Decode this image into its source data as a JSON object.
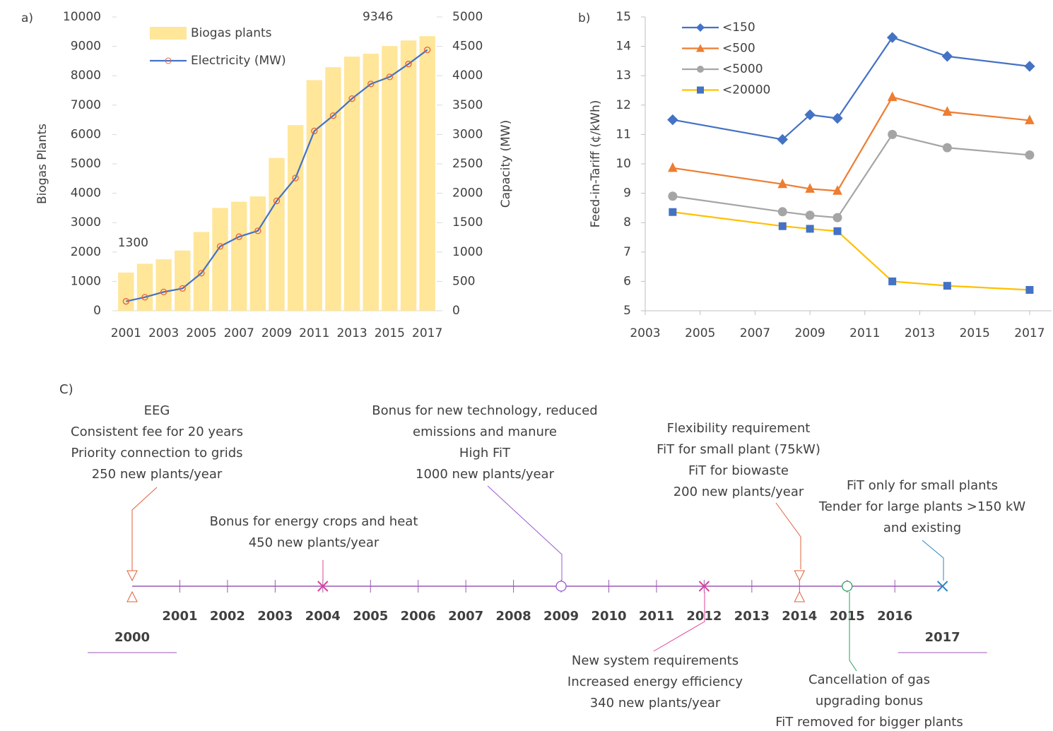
{
  "chart_data": [
    {
      "type": "combo",
      "label": "a)",
      "categories": [
        "2001",
        null,
        "2003",
        null,
        "2005",
        null,
        "2007",
        null,
        "2009",
        null,
        "2011",
        null,
        "2013",
        null,
        "2015",
        null,
        "2017"
      ],
      "series": [
        {
          "name": "Biogas plants",
          "type": "bar",
          "color": "#ffe699",
          "values": [
            1300,
            1600,
            1750,
            2050,
            2680,
            3500,
            3711,
            3891,
            5200,
            6320,
            7850,
            8290,
            8650,
            8750,
            9010,
            9200,
            9346
          ],
          "value_labels": [
            "1300",
            null,
            null,
            null,
            null,
            null,
            null,
            null,
            null,
            null,
            null,
            null,
            null,
            null,
            null,
            null,
            "9346"
          ]
        },
        {
          "name": "Electricity (MW)",
          "type": "line",
          "axis": "y2",
          "color": "#4472c4",
          "marker_color": "#e8603c",
          "values": [
            160,
            230,
            320,
            380,
            640,
            1095,
            1260,
            1360,
            1870,
            2260,
            3060,
            3320,
            3610,
            3860,
            3980,
            4200,
            4440
          ]
        }
      ],
      "ylabel": "Biogas Plants",
      "y2label": "Capacity (MW)",
      "ylim": [
        0,
        10000
      ],
      "yticks": [
        0,
        1000,
        2000,
        3000,
        4000,
        5000,
        6000,
        7000,
        8000,
        9000,
        10000
      ],
      "y2lim": [
        0,
        5000
      ],
      "y2ticks": [
        0,
        500,
        1000,
        1500,
        2000,
        2500,
        3000,
        3500,
        4000,
        4500,
        5000
      ],
      "legend": "upper-left"
    },
    {
      "type": "line",
      "label": "b)",
      "x": [
        2004,
        2008,
        2009,
        2010,
        2012,
        2014,
        2017
      ],
      "series": [
        {
          "name": "<150",
          "color": "#4472c4",
          "marker": "diamond",
          "marker_color": "#4472c4",
          "values": [
            11.5,
            10.83,
            11.67,
            11.55,
            14.3,
            13.66,
            13.32
          ]
        },
        {
          "name": "<500",
          "color": "#ed7d31",
          "marker": "triangle",
          "marker_color": "#ed7d31",
          "values": [
            9.86,
            9.31,
            9.15,
            9.08,
            12.27,
            11.77,
            11.48
          ]
        },
        {
          "name": "<5000",
          "color": "#a5a5a5",
          "marker": "circle",
          "marker_color": "#a5a5a5",
          "values": [
            8.9,
            8.37,
            8.25,
            8.17,
            11.0,
            10.55,
            10.3
          ]
        },
        {
          "name": "<20000",
          "color": "#ffc000",
          "marker": "square",
          "marker_color": "#4472c4",
          "values": [
            8.36,
            7.88,
            7.79,
            7.71,
            6.0,
            5.85,
            5.71
          ]
        }
      ],
      "ylabel": "Feed-in-Tariff (¢/kWh)",
      "xlim": [
        2003,
        2017.8
      ],
      "xticks": [
        2003,
        2005,
        2007,
        2009,
        2011,
        2013,
        2015,
        2017
      ],
      "ylim": [
        5,
        15
      ],
      "yticks": [
        5,
        6,
        7,
        8,
        9,
        10,
        11,
        12,
        13,
        14,
        15
      ],
      "legend": "upper-left"
    }
  ],
  "timeline": {
    "label": "C)",
    "years": [
      "2000",
      "2001",
      "2002",
      "2003",
      "2004",
      "2005",
      "2006",
      "2007",
      "2008",
      "2009",
      "2010",
      "2011",
      "2012",
      "2013",
      "2014",
      "2015",
      "2016",
      "2017"
    ],
    "events": [
      {
        "at": 2000,
        "marker": "triangles",
        "color": "#e0603a",
        "lines": [
          "EEG",
          "Consistent fee for 20 years",
          "Priority connection to grids",
          "250 new plants/year"
        ]
      },
      {
        "at": 2004,
        "marker": "x",
        "color": "#e0409a",
        "lines": [
          "Bonus for energy crops and heat",
          "450 new plants/year"
        ]
      },
      {
        "at": 2009,
        "marker": "circle",
        "color": "#9b59d0",
        "lines": [
          "Bonus for new technology, reduced",
          "emissions and manure",
          "High FiT",
          "1000 new plants/year"
        ]
      },
      {
        "at": 2012,
        "marker": "x",
        "color": "#e0409a",
        "lines": [
          "New system requirements",
          "Increased energy efficiency",
          "340 new plants/year"
        ]
      },
      {
        "at": 2014,
        "marker": "triangles",
        "color": "#e0603a",
        "lines": [
          "Flexibility requirement",
          "FiT for small plant (75kW)",
          "FiT for biowaste",
          "200 new plants/year"
        ]
      },
      {
        "at": 2015,
        "marker": "circle",
        "color": "#2e9e5e",
        "lines": [
          "Cancellation of gas",
          "upgrading bonus",
          "FiT removed for bigger plants"
        ]
      },
      {
        "at": 2017,
        "marker": "x",
        "color": "#2e86c1",
        "lines": [
          "FiT only for small plants",
          "Tender for large plants >150 kW",
          "and existing"
        ]
      }
    ]
  }
}
